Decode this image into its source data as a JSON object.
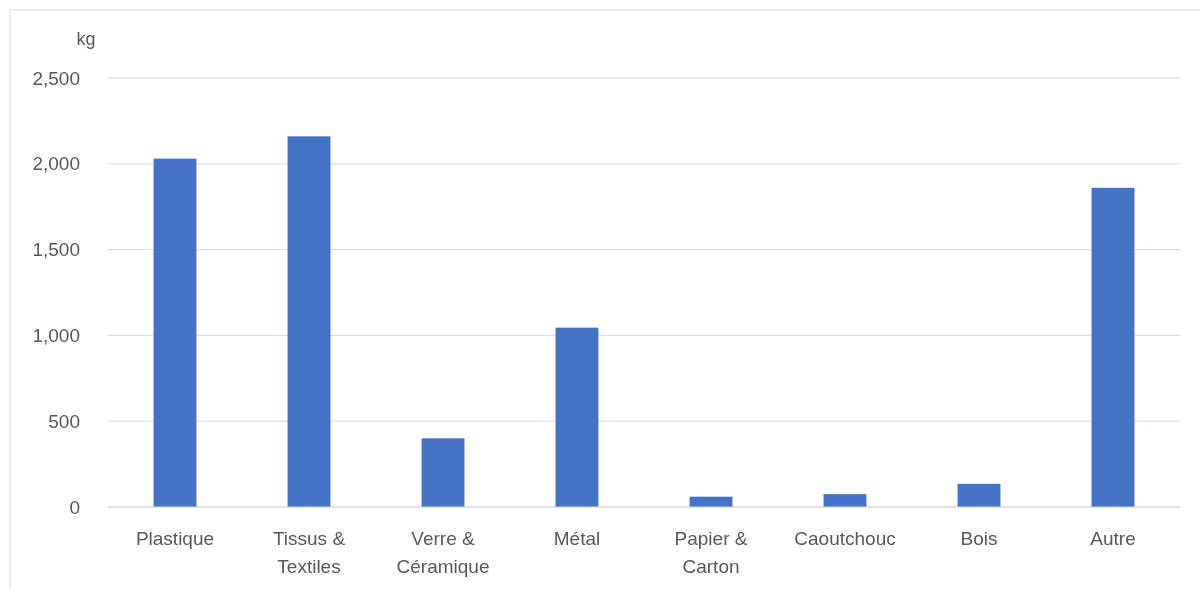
{
  "chart_data": {
    "type": "bar",
    "ylabel": "kg",
    "categories": [
      "Plastique",
      "Tissus & Textiles",
      "Verre & Céramique",
      "Métal",
      "Papier & Carton",
      "Caoutchouc",
      "Bois",
      "Autre"
    ],
    "values": [
      2030,
      2160,
      400,
      1045,
      60,
      75,
      135,
      1860
    ],
    "color": "#4472c4",
    "ylim": [
      0,
      2500
    ],
    "yticks": [
      {
        "value": 0,
        "label": "0"
      },
      {
        "value": 500,
        "label": "500"
      },
      {
        "value": 1000,
        "label": "1,000"
      },
      {
        "value": 1500,
        "label": "1,500"
      },
      {
        "value": 2000,
        "label": "2,000"
      },
      {
        "value": 2500,
        "label": "2,500"
      }
    ],
    "grid": "y"
  }
}
